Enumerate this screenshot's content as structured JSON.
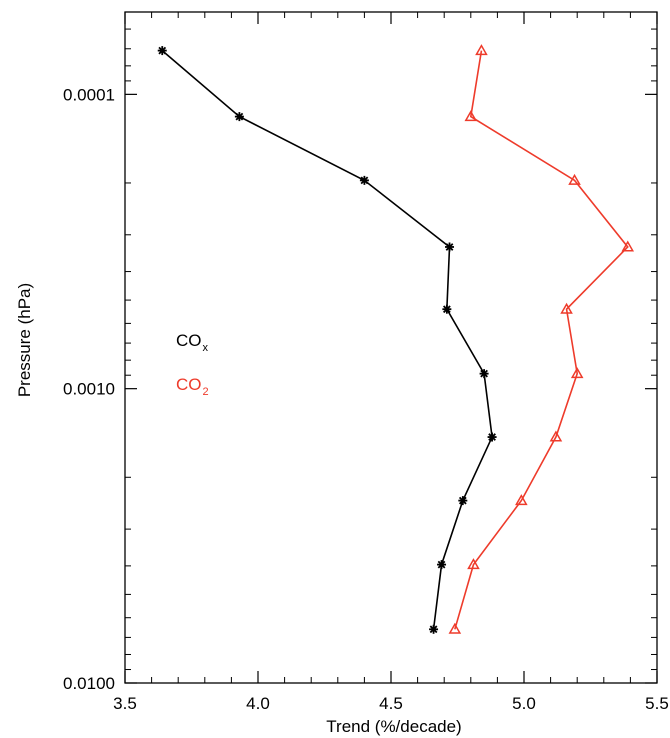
{
  "chart_data": {
    "type": "line",
    "xlabel": "Trend (%/decade)",
    "ylabel": "Pressure (hPa)",
    "xlim": [
      3.5,
      5.5
    ],
    "ylim": [
      0.01,
      5.25e-05
    ],
    "y_scale": "log",
    "y_inverted": true,
    "grid": false,
    "legend_position": "left",
    "x_ticks": [
      3.5,
      4.0,
      4.5,
      5.0,
      5.5
    ],
    "x_tick_labels": [
      "3.5",
      "4.0",
      "4.5",
      "5.0",
      "5.5"
    ],
    "y_ticks": [
      0.0001,
      0.001,
      0.01
    ],
    "y_tick_labels": [
      "0.0001",
      "0.0010",
      "0.0100"
    ],
    "series": [
      {
        "name": "CO",
        "name_subscript": "x",
        "color": "#000000",
        "marker": "asterisk",
        "points": [
          {
            "x": 3.64,
            "y": 7.1e-05
          },
          {
            "x": 3.93,
            "y": 0.000119
          },
          {
            "x": 4.4,
            "y": 0.000196
          },
          {
            "x": 4.72,
            "y": 0.00033
          },
          {
            "x": 4.71,
            "y": 0.000537
          },
          {
            "x": 4.85,
            "y": 0.000889
          },
          {
            "x": 4.88,
            "y": 0.00146
          },
          {
            "x": 4.77,
            "y": 0.0024
          },
          {
            "x": 4.69,
            "y": 0.00396
          },
          {
            "x": 4.66,
            "y": 0.00657
          }
        ]
      },
      {
        "name": "CO",
        "name_subscript": "2",
        "color": "#ee3b2b",
        "marker": "triangle",
        "points": [
          {
            "x": 4.84,
            "y": 7.1e-05
          },
          {
            "x": 4.8,
            "y": 0.000119
          },
          {
            "x": 5.19,
            "y": 0.000196
          },
          {
            "x": 5.39,
            "y": 0.00033
          },
          {
            "x": 5.16,
            "y": 0.000537
          },
          {
            "x": 5.2,
            "y": 0.000889
          },
          {
            "x": 5.12,
            "y": 0.00146
          },
          {
            "x": 4.99,
            "y": 0.0024
          },
          {
            "x": 4.81,
            "y": 0.00396
          },
          {
            "x": 4.74,
            "y": 0.00657
          }
        ]
      }
    ]
  }
}
